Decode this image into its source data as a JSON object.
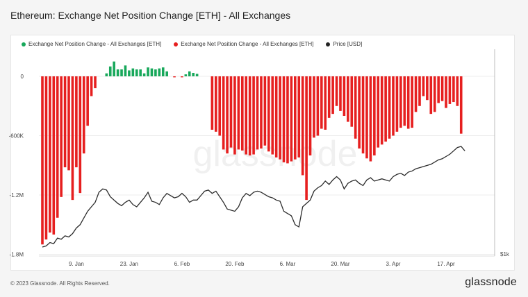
{
  "title": "Ethereum: Exchange Net Position Change [ETH] - All Exchanges",
  "legend": [
    {
      "label": "Exchange Net Position Change - All Exchanges [ETH]",
      "color": "#18a85b"
    },
    {
      "label": "Exchange Net Position Change - All Exchanges [ETH]",
      "color": "#e61f1f"
    },
    {
      "label": "Price [USD]",
      "color": "#222222"
    }
  ],
  "footer": "© 2023 Glassnode. All Rights Reserved.",
  "brand": "glassnode",
  "watermark": "glassnode",
  "colors": {
    "positive": "#18a85b",
    "negative": "#e61f1f",
    "price": "#2b2b2b",
    "grid": "#ececec"
  },
  "chart_data": {
    "type": "bar",
    "y_left_ticks": [
      {
        "value": 0,
        "label": "0"
      },
      {
        "value": -600000,
        "label": "-600K"
      },
      {
        "value": -1200000,
        "label": "-1.2M"
      },
      {
        "value": -1800000,
        "label": "-1.8M"
      }
    ],
    "ylim": [
      -1800000,
      200000
    ],
    "y_right_ticks": [
      {
        "label": "$1k"
      }
    ],
    "x_ticks": [
      {
        "index": 9,
        "label": "9. Jan"
      },
      {
        "index": 23,
        "label": "23. Jan"
      },
      {
        "index": 37,
        "label": "6. Feb"
      },
      {
        "index": 51,
        "label": "20. Feb"
      },
      {
        "index": 65,
        "label": "6. Mar"
      },
      {
        "index": 79,
        "label": "20. Mar"
      },
      {
        "index": 93,
        "label": "3. Apr"
      },
      {
        "index": 107,
        "label": "17. Apr"
      }
    ],
    "series": [
      {
        "values": [
          -1700000,
          -1650000,
          -1580000,
          -1600000,
          -1430000,
          -1220000,
          -920000,
          -950000,
          -1250000,
          -920000,
          -1180000,
          -780000,
          -500000,
          -200000,
          -120000,
          0,
          0,
          30000,
          100000,
          150000,
          70000,
          70000,
          110000,
          60000,
          80000,
          70000,
          70000,
          30000,
          90000,
          80000,
          70000,
          80000,
          90000,
          50000,
          0,
          -10000,
          0,
          -10000,
          20000,
          50000,
          35000,
          25000,
          0,
          0,
          0,
          -540000,
          -560000,
          -600000,
          -740000,
          -780000,
          -720000,
          -790000,
          -740000,
          -750000,
          -790000,
          -800000,
          -790000,
          -740000,
          -730000,
          -700000,
          -760000,
          -790000,
          -820000,
          -840000,
          -870000,
          -880000,
          -860000,
          -840000,
          -820000,
          -1000000,
          -1250000,
          -800000,
          -620000,
          -600000,
          -530000,
          -540000,
          -420000,
          -380000,
          -300000,
          -350000,
          -400000,
          -460000,
          -510000,
          -630000,
          -730000,
          -780000,
          -830000,
          -860000,
          -800000,
          -720000,
          -690000,
          -660000,
          -630000,
          -600000,
          -560000,
          -520000,
          -500000,
          -530000,
          -520000,
          -360000,
          -300000,
          -200000,
          -240000,
          -380000,
          -360000,
          -270000,
          -250000,
          -320000,
          -280000,
          -260000,
          -300000,
          -580000
        ],
        "sign_colors": true
      },
      {
        "name": "Price [USD]",
        "values": [
          1200,
          1210,
          1240,
          1230,
          1280,
          1270,
          1300,
          1290,
          1320,
          1370,
          1400,
          1460,
          1520,
          1560,
          1600,
          1690,
          1720,
          1710,
          1650,
          1620,
          1590,
          1570,
          1600,
          1620,
          1580,
          1560,
          1600,
          1640,
          1690,
          1610,
          1600,
          1580,
          1640,
          1680,
          1660,
          1640,
          1650,
          1680,
          1650,
          1600,
          1620,
          1620,
          1660,
          1700,
          1710,
          1680,
          1700,
          1650,
          1600,
          1540,
          1530,
          1520,
          1560,
          1640,
          1680,
          1660,
          1690,
          1700,
          1690,
          1670,
          1650,
          1640,
          1620,
          1610,
          1520,
          1500,
          1480,
          1400,
          1380,
          1560,
          1590,
          1620,
          1700,
          1730,
          1750,
          1790,
          1760,
          1800,
          1830,
          1800,
          1720,
          1770,
          1790,
          1800,
          1770,
          1750,
          1800,
          1820,
          1790,
          1800,
          1810,
          1800,
          1790,
          1830,
          1850,
          1860,
          1840,
          1870,
          1880,
          1900,
          1910,
          1920,
          1930,
          1940,
          1960,
          1980,
          1990,
          2010,
          2030,
          2060,
          2090,
          2100,
          2060
        ],
        "ylim": [
          1000,
          2300
        ]
      }
    ]
  }
}
